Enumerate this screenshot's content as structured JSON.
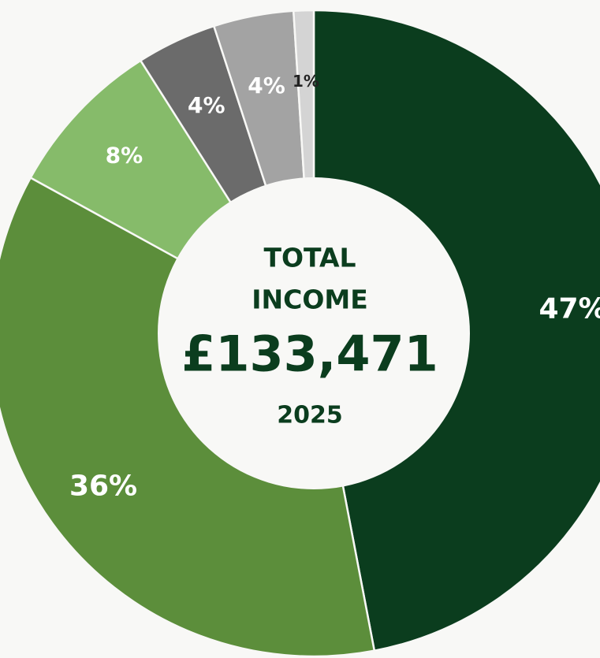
{
  "chart_data": {
    "type": "pie",
    "donut": true,
    "center": {
      "line1": "TOTAL",
      "line2": "INCOME",
      "amount": "£133,471",
      "year": "2025"
    },
    "slices": [
      {
        "value": 47,
        "label": "47%",
        "color": "#0b3d1e",
        "label_color": "#ffffff"
      },
      {
        "value": 36,
        "label": "36%",
        "color": "#5c8e3b",
        "label_color": "#ffffff"
      },
      {
        "value": 8,
        "label": "8%",
        "color": "#86bb6a",
        "label_color": "#ffffff"
      },
      {
        "value": 4,
        "label": "4%",
        "color": "#6b6b6b",
        "label_color": "#ffffff"
      },
      {
        "value": 4,
        "label": "4%",
        "color": "#a3a3a3",
        "label_color": "#ffffff"
      },
      {
        "value": 1,
        "label": "1%",
        "color": "#d4d4d4",
        "label_color": "#222222"
      }
    ],
    "center_text_color": "#0b3d1e",
    "background": "#f8f8f6"
  }
}
